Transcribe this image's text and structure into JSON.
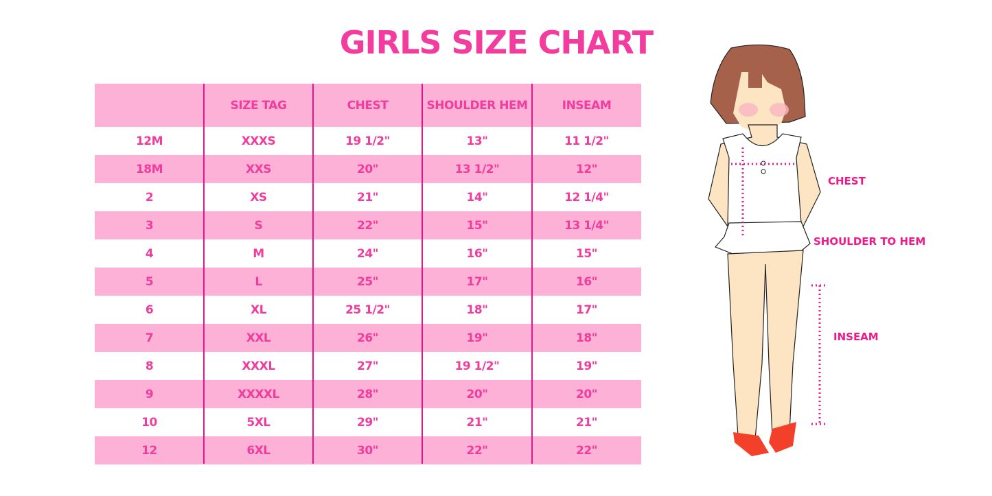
{
  "title": "GIRLS SIZE CHART",
  "colors": {
    "accent": "#f03c9c",
    "row_pink": "#fdb1d6",
    "divider": "#e3168c"
  },
  "table": {
    "headers": [
      "",
      "SIZE TAG",
      "CHEST",
      "SHOULDER HEM",
      "INSEAM"
    ],
    "rows": [
      [
        "12M",
        "XXXS",
        "19 1/2\"",
        "13\"",
        "11 1/2\""
      ],
      [
        "18M",
        "XXS",
        "20\"",
        "13 1/2\"",
        "12\""
      ],
      [
        "2",
        "XS",
        "21\"",
        "14\"",
        "12 1/4\""
      ],
      [
        "3",
        "S",
        "22\"",
        "15\"",
        "13 1/4\""
      ],
      [
        "4",
        "M",
        "24\"",
        "16\"",
        "15\""
      ],
      [
        "5",
        "L",
        "25\"",
        "17\"",
        "16\""
      ],
      [
        "6",
        "XL",
        "25 1/2\"",
        "18\"",
        "17\""
      ],
      [
        "7",
        "XXL",
        "26\"",
        "19\"",
        "18\""
      ],
      [
        "8",
        "XXXL",
        "27\"",
        "19 1/2\"",
        "19\""
      ],
      [
        "9",
        "XXXXL",
        "28\"",
        "20\"",
        "20\""
      ],
      [
        "10",
        "5XL",
        "29\"",
        "21\"",
        "21\""
      ],
      [
        "12",
        "6XL",
        "30\"",
        "22\"",
        "22\""
      ]
    ]
  },
  "figure": {
    "labels": {
      "chest": "CHEST",
      "shoulder": "SHOULDER TO HEM",
      "inseam": "INSEAM"
    }
  }
}
